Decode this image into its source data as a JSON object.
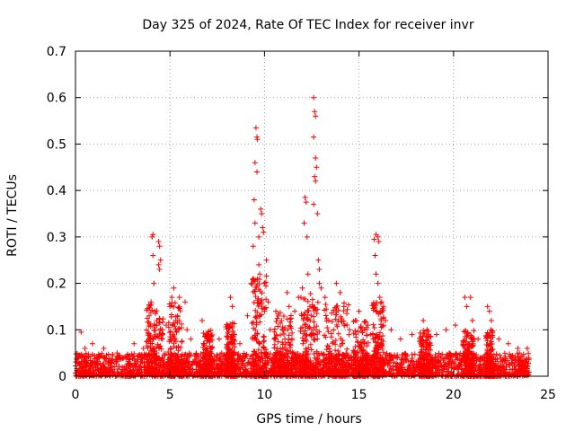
{
  "chart_data": {
    "type": "scatter",
    "title": "Day 325 of 2024, Rate Of TEC Index for receiver invr",
    "xlabel": "GPS time / hours",
    "ylabel": "ROTI / TECUs",
    "xlim": [
      0,
      25
    ],
    "ylim": [
      0,
      0.7
    ],
    "xticks": [
      0,
      5,
      10,
      15,
      20,
      25
    ],
    "yticks": [
      0,
      0.1,
      0.2,
      0.3,
      0.4,
      0.5,
      0.6,
      0.7
    ],
    "xtick_labels": [
      "0",
      "5",
      "10",
      "15",
      "20",
      "25"
    ],
    "ytick_labels": [
      "0",
      "0.1",
      "0.2",
      "0.3",
      "0.4",
      "0.5",
      "0.6",
      "0.7"
    ],
    "grid": true,
    "marker": "+",
    "color": "#ff0000",
    "data_range_x": [
      0,
      24
    ],
    "baseline_band": [
      0.0,
      0.05
    ],
    "series": [
      {
        "name": "ROTI samples (representative)",
        "points": [
          [
            0.1,
            0.04
          ],
          [
            0.3,
            0.095
          ],
          [
            0.5,
            0.06
          ],
          [
            0.9,
            0.07
          ],
          [
            1.5,
            0.06
          ],
          [
            2.2,
            0.05
          ],
          [
            3.1,
            0.07
          ],
          [
            3.6,
            0.06
          ],
          [
            3.9,
            0.13
          ],
          [
            4.0,
            0.16
          ],
          [
            4.1,
            0.305
          ],
          [
            4.05,
            0.3
          ],
          [
            4.1,
            0.26
          ],
          [
            4.15,
            0.2
          ],
          [
            4.2,
            0.14
          ],
          [
            4.3,
            0.12
          ],
          [
            4.4,
            0.29
          ],
          [
            4.45,
            0.28
          ],
          [
            4.5,
            0.25
          ],
          [
            4.4,
            0.24
          ],
          [
            4.45,
            0.23
          ],
          [
            4.6,
            0.1
          ],
          [
            4.8,
            0.11
          ],
          [
            5.0,
            0.15
          ],
          [
            5.1,
            0.17
          ],
          [
            5.2,
            0.19
          ],
          [
            5.4,
            0.13
          ],
          [
            5.5,
            0.17
          ],
          [
            5.8,
            0.16
          ],
          [
            5.9,
            0.1
          ],
          [
            6.1,
            0.08
          ],
          [
            6.7,
            0.12
          ],
          [
            7.0,
            0.09
          ],
          [
            7.6,
            0.08
          ],
          [
            8.2,
            0.17
          ],
          [
            8.3,
            0.15
          ],
          [
            8.7,
            0.07
          ],
          [
            9.1,
            0.13
          ],
          [
            9.3,
            0.2
          ],
          [
            9.4,
            0.28
          ],
          [
            9.45,
            0.38
          ],
          [
            9.5,
            0.46
          ],
          [
            9.55,
            0.535
          ],
          [
            9.6,
            0.515
          ],
          [
            9.62,
            0.51
          ],
          [
            9.6,
            0.44
          ],
          [
            9.5,
            0.33
          ],
          [
            9.7,
            0.3
          ],
          [
            9.8,
            0.36
          ],
          [
            9.85,
            0.35
          ],
          [
            9.9,
            0.32
          ],
          [
            9.95,
            0.31
          ],
          [
            9.7,
            0.24
          ],
          [
            9.75,
            0.22
          ],
          [
            10.0,
            0.2
          ],
          [
            10.1,
            0.25
          ],
          [
            10.2,
            0.16
          ],
          [
            10.0,
            0.14
          ],
          [
            10.3,
            0.1
          ],
          [
            10.6,
            0.14
          ],
          [
            10.9,
            0.12
          ],
          [
            11.2,
            0.18
          ],
          [
            11.3,
            0.15
          ],
          [
            11.6,
            0.14
          ],
          [
            11.8,
            0.17
          ],
          [
            12.0,
            0.19
          ],
          [
            12.1,
            0.33
          ],
          [
            12.15,
            0.385
          ],
          [
            12.2,
            0.375
          ],
          [
            12.25,
            0.3
          ],
          [
            12.3,
            0.22
          ],
          [
            12.4,
            0.15
          ],
          [
            12.6,
            0.6
          ],
          [
            12.65,
            0.57
          ],
          [
            12.7,
            0.56
          ],
          [
            12.6,
            0.515
          ],
          [
            12.7,
            0.47
          ],
          [
            12.75,
            0.45
          ],
          [
            12.65,
            0.43
          ],
          [
            12.7,
            0.42
          ],
          [
            12.6,
            0.37
          ],
          [
            12.8,
            0.35
          ],
          [
            12.85,
            0.25
          ],
          [
            12.9,
            0.23
          ],
          [
            12.9,
            0.2
          ],
          [
            13.0,
            0.19
          ],
          [
            13.2,
            0.17
          ],
          [
            13.4,
            0.12
          ],
          [
            13.8,
            0.2
          ],
          [
            14.0,
            0.18
          ],
          [
            14.2,
            0.15
          ],
          [
            14.5,
            0.1
          ],
          [
            14.8,
            0.12
          ],
          [
            15.0,
            0.14
          ],
          [
            15.3,
            0.1
          ],
          [
            15.6,
            0.09
          ],
          [
            15.8,
            0.295
          ],
          [
            15.9,
            0.305
          ],
          [
            16.0,
            0.3
          ],
          [
            16.05,
            0.29
          ],
          [
            15.85,
            0.26
          ],
          [
            15.9,
            0.22
          ],
          [
            16.0,
            0.2
          ],
          [
            16.1,
            0.17
          ],
          [
            16.2,
            0.16
          ],
          [
            16.4,
            0.12
          ],
          [
            16.7,
            0.1
          ],
          [
            17.2,
            0.08
          ],
          [
            17.8,
            0.09
          ],
          [
            18.4,
            0.12
          ],
          [
            18.6,
            0.1
          ],
          [
            19.1,
            0.09
          ],
          [
            19.6,
            0.1
          ],
          [
            20.1,
            0.11
          ],
          [
            20.6,
            0.17
          ],
          [
            20.7,
            0.15
          ],
          [
            20.9,
            0.17
          ],
          [
            21.0,
            0.12
          ],
          [
            21.3,
            0.08
          ],
          [
            21.8,
            0.15
          ],
          [
            21.9,
            0.14
          ],
          [
            22.0,
            0.12
          ],
          [
            22.4,
            0.08
          ],
          [
            22.9,
            0.07
          ],
          [
            23.4,
            0.06
          ],
          [
            23.9,
            0.06
          ]
        ]
      }
    ],
    "bursts": [
      {
        "center": 4.2,
        "width": 0.9,
        "peak": 0.16
      },
      {
        "center": 5.3,
        "width": 0.8,
        "peak": 0.16
      },
      {
        "center": 7.0,
        "width": 0.5,
        "peak": 0.1
      },
      {
        "center": 8.2,
        "width": 0.5,
        "peak": 0.12
      },
      {
        "center": 9.7,
        "width": 0.8,
        "peak": 0.22
      },
      {
        "center": 11.0,
        "width": 1.0,
        "peak": 0.14
      },
      {
        "center": 12.4,
        "width": 1.0,
        "peak": 0.18
      },
      {
        "center": 13.8,
        "width": 1.4,
        "peak": 0.16
      },
      {
        "center": 15.1,
        "width": 0.8,
        "peak": 0.12
      },
      {
        "center": 16.0,
        "width": 0.6,
        "peak": 0.16
      },
      {
        "center": 18.5,
        "width": 0.6,
        "peak": 0.1
      },
      {
        "center": 20.8,
        "width": 0.6,
        "peak": 0.1
      },
      {
        "center": 21.9,
        "width": 0.4,
        "peak": 0.1
      }
    ]
  }
}
